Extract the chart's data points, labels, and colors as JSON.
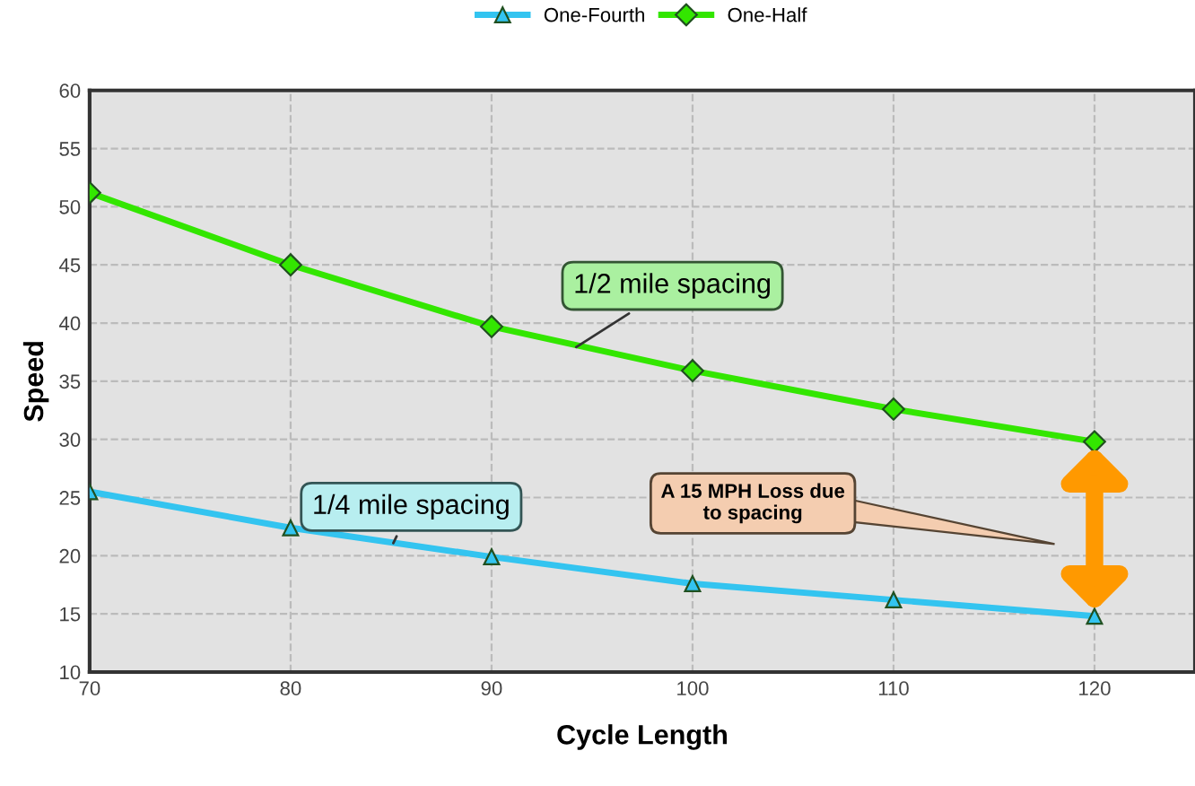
{
  "chart_data": {
    "type": "line",
    "xlabel": "Cycle Length",
    "ylabel": "Speed",
    "x": [
      70,
      80,
      90,
      100,
      110,
      120
    ],
    "series": [
      {
        "name": "One-Fourth",
        "color": "#33c4f0",
        "marker": "triangle",
        "values": [
          25.5,
          22.4,
          19.9,
          17.6,
          16.2,
          14.8
        ]
      },
      {
        "name": "One-Half",
        "color": "#33e600",
        "marker": "diamond",
        "values": [
          51.2,
          45.0,
          39.7,
          35.9,
          32.6,
          29.8
        ]
      }
    ],
    "xlim": [
      70,
      125
    ],
    "xticks": [
      70,
      80,
      90,
      100,
      110,
      120
    ],
    "ylim": [
      10,
      60
    ],
    "yticks": [
      10,
      15,
      20,
      25,
      30,
      35,
      40,
      45,
      50,
      55,
      60
    ],
    "grid": true,
    "legend": "top",
    "line_style": "solid",
    "annotations": [
      {
        "text": "1/2 mile spacing",
        "x": 94,
        "y": 37.7
      },
      {
        "text": "1/4 mile spacing",
        "x": 85,
        "y": 20.7
      },
      "A 15 MPH Loss due\nto spacing"
    ]
  }
}
